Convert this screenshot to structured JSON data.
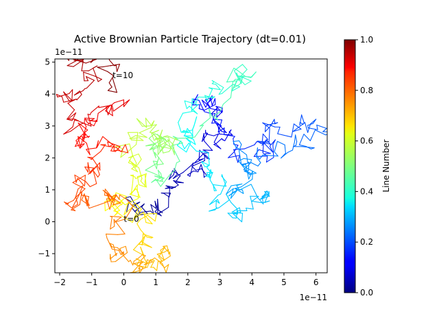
{
  "chart_data": {
    "type": "line",
    "title": "Active Brownian Particle Trajectory (dt=0.01)",
    "xlabel": "",
    "ylabel": "",
    "x_offset_label": "1e−11",
    "y_offset_label": "1e−11",
    "xlim": [
      -2.15,
      6.35
    ],
    "ylim": [
      -1.6,
      5.1
    ],
    "x_ticks": [
      -2,
      -1,
      0,
      1,
      2,
      3,
      4,
      5,
      6
    ],
    "x_tick_labels": [
      "−2",
      "−1",
      "0",
      "1",
      "2",
      "3",
      "4",
      "5",
      "6"
    ],
    "y_ticks": [
      -1,
      0,
      1,
      2,
      3,
      4,
      5
    ],
    "y_tick_labels": [
      "−1",
      "0",
      "1",
      "2",
      "3",
      "4",
      "5"
    ],
    "grid": false,
    "colormap": "jet",
    "colorbar": {
      "label": "Line Number",
      "range": [
        0,
        1
      ],
      "ticks": [
        0.0,
        0.2,
        0.4,
        0.6,
        0.8,
        1.0
      ],
      "tick_labels": [
        "0.0",
        "0.2",
        "0.4",
        "0.6",
        "0.8",
        "1.0"
      ]
    },
    "annotations": [
      {
        "text": "t=0",
        "x": 0.0,
        "y": 0.0
      },
      {
        "text": "t=10",
        "x": -0.35,
        "y": 4.5
      }
    ],
    "anchor_points": [
      [
        0.0,
        0.4
      ],
      [
        0.6,
        0.4
      ],
      [
        1.3,
        0.7
      ],
      [
        1.7,
        1.2
      ],
      [
        2.4,
        1.6
      ],
      [
        2.6,
        2.4
      ],
      [
        3.1,
        2.7
      ],
      [
        2.8,
        3.4
      ],
      [
        2.4,
        3.9
      ],
      [
        3.4,
        2.2
      ],
      [
        4.4,
        2.2
      ],
      [
        4.6,
        3.0
      ],
      [
        5.6,
        3.1
      ],
      [
        6.3,
        2.7
      ],
      [
        4.8,
        2.4
      ],
      [
        3.7,
        2.2
      ],
      [
        3.9,
        1.5
      ],
      [
        3.3,
        0.9
      ],
      [
        4.4,
        0.7
      ],
      [
        3.5,
        0.2
      ],
      [
        2.6,
        0.8
      ],
      [
        3.0,
        1.5
      ],
      [
        2.2,
        2.4
      ],
      [
        2.0,
        3.3
      ],
      [
        2.6,
        4.1
      ],
      [
        3.5,
        4.4
      ],
      [
        4.1,
        4.8
      ],
      [
        2.4,
        3.4
      ],
      [
        1.2,
        1.1
      ],
      [
        1.0,
        1.8
      ],
      [
        0.9,
        2.6
      ],
      [
        1.6,
        2.3
      ],
      [
        1.1,
        2.6
      ],
      [
        0.6,
        3.1
      ],
      [
        0.2,
        2.3
      ],
      [
        0.5,
        1.6
      ],
      [
        0.2,
        1.0
      ],
      [
        -0.2,
        0.6
      ],
      [
        0.3,
        0.3
      ],
      [
        0.8,
        -0.3
      ],
      [
        0.4,
        -1.1
      ],
      [
        1.3,
        -1.0
      ],
      [
        0.6,
        -1.5
      ],
      [
        0.0,
        -1.2
      ],
      [
        -0.4,
        -0.6
      ],
      [
        0.0,
        0.6
      ],
      [
        -0.5,
        1.0
      ],
      [
        -1.8,
        0.4
      ],
      [
        -1.2,
        1.3
      ],
      [
        -0.8,
        1.9
      ],
      [
        -0.3,
        2.4
      ],
      [
        -1.5,
        2.5
      ],
      [
        -0.9,
        3.1
      ],
      [
        -0.2,
        3.6
      ],
      [
        -1.6,
        2.9
      ],
      [
        -1.8,
        3.8
      ],
      [
        -0.9,
        4.6
      ],
      [
        -1.6,
        5.1
      ],
      [
        -0.5,
        4.9
      ],
      [
        -0.35,
        4.5
      ]
    ],
    "segments": 1000
  }
}
